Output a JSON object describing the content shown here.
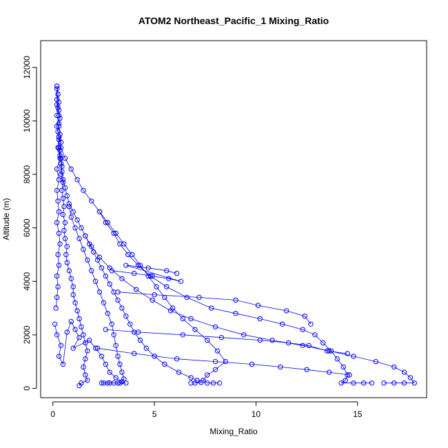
{
  "chart_data": {
    "type": "scatter",
    "title": "ATOM2 Northeast_Pacific_1 Mixing_Ratio",
    "xlabel": "Mixing_Ratio",
    "ylabel": "Altitude (m)",
    "xlim": [
      -0.6,
      18.4
    ],
    "ylim": [
      -350,
      13000
    ],
    "xticks": [
      0,
      5,
      10,
      15
    ],
    "yticks": [
      0,
      2000,
      4000,
      6000,
      8000,
      10000,
      12000
    ],
    "color": "#0000ff",
    "grid": false,
    "legend": "none",
    "series": [
      {
        "points": [
          [
            0.2,
            11300
          ],
          [
            0.25,
            11000
          ],
          [
            0.3,
            10700
          ],
          [
            0.3,
            10400
          ],
          [
            0.35,
            10100
          ],
          [
            0.3,
            9800
          ],
          [
            0.35,
            9500
          ],
          [
            0.4,
            9200
          ],
          [
            0.35,
            8900
          ],
          [
            0.4,
            8600
          ],
          [
            0.45,
            8300
          ],
          [
            0.4,
            8000
          ],
          [
            0.5,
            7700
          ],
          [
            0.45,
            7400
          ],
          [
            0.5,
            7100
          ],
          [
            0.55,
            6800
          ],
          [
            0.5,
            6500
          ],
          [
            0.6,
            6200
          ],
          [
            0.55,
            5900
          ],
          [
            0.6,
            5600
          ],
          [
            0.7,
            5300
          ],
          [
            0.65,
            5000
          ],
          [
            0.7,
            4700
          ],
          [
            0.8,
            4400
          ],
          [
            0.9,
            4100
          ],
          [
            1.0,
            3800
          ],
          [
            1.0,
            3500
          ],
          [
            1.1,
            3200
          ],
          [
            1.2,
            2900
          ],
          [
            1.3,
            2600
          ],
          [
            1.4,
            2300
          ],
          [
            1.5,
            2000
          ],
          [
            1.6,
            1700
          ],
          [
            1.7,
            1400
          ],
          [
            1.6,
            1100
          ],
          [
            1.5,
            800
          ],
          [
            1.6,
            500
          ],
          [
            1.7,
            300
          ],
          [
            1.4,
            200
          ],
          [
            1.3,
            100
          ]
        ]
      },
      {
        "points": [
          [
            0.2,
            11200
          ],
          [
            0.2,
            10800
          ],
          [
            0.25,
            10500
          ],
          [
            0.2,
            10200
          ],
          [
            0.3,
            9900
          ],
          [
            0.25,
            9600
          ],
          [
            0.3,
            9300
          ],
          [
            0.3,
            9000
          ],
          [
            0.35,
            8700
          ],
          [
            0.4,
            8400
          ],
          [
            0.45,
            8100
          ],
          [
            0.5,
            7800
          ],
          [
            0.6,
            7500
          ],
          [
            0.7,
            7200
          ],
          [
            0.8,
            6900
          ],
          [
            1.0,
            6600
          ],
          [
            1.2,
            6300
          ],
          [
            1.4,
            6000
          ],
          [
            1.6,
            5700
          ],
          [
            1.8,
            5400
          ],
          [
            2.0,
            5100
          ],
          [
            2.2,
            4800
          ],
          [
            2.4,
            4500
          ],
          [
            2.6,
            4200
          ],
          [
            2.8,
            3900
          ],
          [
            3.0,
            3600
          ],
          [
            3.2,
            3300
          ],
          [
            3.4,
            3000
          ],
          [
            3.6,
            2700
          ],
          [
            3.8,
            2400
          ],
          [
            4.0,
            2100
          ],
          [
            4.3,
            1800
          ],
          [
            4.6,
            1500
          ],
          [
            5.0,
            1200
          ],
          [
            5.5,
            900
          ],
          [
            6.2,
            600
          ],
          [
            6.8,
            400
          ],
          [
            7.1,
            300
          ],
          [
            7.3,
            220
          ],
          [
            7.0,
            200
          ],
          [
            6.8,
            200
          ]
        ]
      },
      {
        "points": [
          [
            0.3,
            9400
          ],
          [
            0.4,
            9000
          ],
          [
            0.6,
            8600
          ],
          [
            0.9,
            8200
          ],
          [
            1.2,
            7800
          ],
          [
            1.5,
            7400
          ],
          [
            1.9,
            7000
          ],
          [
            2.3,
            6600
          ],
          [
            2.7,
            6200
          ],
          [
            3.1,
            5800
          ],
          [
            3.5,
            5400
          ],
          [
            3.9,
            5000
          ],
          [
            4.3,
            4600
          ],
          [
            4.7,
            4200
          ],
          [
            5.1,
            3800
          ],
          [
            5.5,
            3400
          ],
          [
            5.9,
            3000
          ],
          [
            6.4,
            2600
          ],
          [
            7.0,
            2200
          ],
          [
            7.6,
            1800
          ],
          [
            8.1,
            1400
          ],
          [
            8.5,
            1000
          ],
          [
            8.0,
            700
          ],
          [
            7.6,
            500
          ],
          [
            7.4,
            300
          ],
          [
            7.6,
            200
          ],
          [
            7.9,
            200
          ],
          [
            8.2,
            200
          ]
        ]
      },
      {
        "points": [
          [
            2.3,
            6600
          ],
          [
            2.6,
            6200
          ],
          [
            3.0,
            5800
          ],
          [
            3.3,
            5400
          ],
          [
            3.7,
            5000
          ],
          [
            4.2,
            4600
          ],
          [
            4.8,
            4200
          ],
          [
            5.6,
            3800
          ],
          [
            6.6,
            3400
          ],
          [
            7.8,
            3000
          ],
          [
            9.0,
            2800
          ],
          [
            10.2,
            2600
          ],
          [
            11.3,
            2400
          ],
          [
            12.3,
            2200
          ],
          [
            12.9,
            2000
          ],
          [
            13.3,
            1700
          ],
          [
            13.7,
            1400
          ],
          [
            14.0,
            1100
          ],
          [
            14.3,
            800
          ],
          [
            14.5,
            500
          ],
          [
            14.4,
            300
          ],
          [
            14.2,
            200
          ],
          [
            14.8,
            200
          ],
          [
            15.3,
            200
          ],
          [
            15.7,
            200
          ]
        ]
      },
      {
        "points": [
          [
            1.6,
            5700
          ],
          [
            1.9,
            5300
          ],
          [
            2.3,
            4900
          ],
          [
            2.8,
            4500
          ],
          [
            3.4,
            4100
          ],
          [
            4.1,
            3700
          ],
          [
            4.9,
            3300
          ],
          [
            5.8,
            2900
          ],
          [
            6.8,
            2600
          ],
          [
            8.0,
            2300
          ],
          [
            9.4,
            2000
          ],
          [
            10.8,
            1800
          ],
          [
            12.3,
            1600
          ],
          [
            13.6,
            1400
          ],
          [
            14.8,
            1200
          ],
          [
            15.9,
            1000
          ],
          [
            16.8,
            800
          ],
          [
            17.3,
            600
          ],
          [
            17.6,
            400
          ],
          [
            17.8,
            200
          ],
          [
            17.3,
            200
          ],
          [
            16.8,
            200
          ],
          [
            16.3,
            200
          ]
        ]
      },
      {
        "points": [
          [
            0.8,
            6800
          ],
          [
            0.9,
            6400
          ],
          [
            1.1,
            6000
          ],
          [
            1.3,
            5600
          ],
          [
            1.5,
            5200
          ],
          [
            1.7,
            4800
          ],
          [
            1.9,
            4400
          ],
          [
            2.1,
            4000
          ],
          [
            2.3,
            3600
          ],
          [
            2.5,
            3200
          ],
          [
            2.7,
            2800
          ],
          [
            2.9,
            2400
          ],
          [
            3.0,
            2000
          ],
          [
            3.1,
            1600
          ],
          [
            3.2,
            1200
          ],
          [
            3.3,
            900
          ],
          [
            3.4,
            600
          ],
          [
            3.5,
            350
          ],
          [
            3.3,
            200
          ],
          [
            3.0,
            200
          ],
          [
            2.7,
            200
          ],
          [
            2.4,
            200
          ]
        ]
      },
      {
        "points": [
          [
            2.9,
            4400
          ],
          [
            4.0,
            4300
          ],
          [
            4.9,
            4200
          ],
          [
            5.7,
            4100
          ],
          [
            6.3,
            4000
          ],
          [
            3.6,
            4600
          ],
          [
            4.7,
            4500
          ],
          [
            5.6,
            4400
          ],
          [
            6.1,
            4300
          ]
        ]
      },
      {
        "points": [
          [
            3.2,
            3600
          ],
          [
            5.0,
            3500
          ],
          [
            7.2,
            3400
          ],
          [
            9.0,
            3300
          ],
          [
            10.1,
            3100
          ],
          [
            11.5,
            2900
          ],
          [
            12.4,
            2700
          ],
          [
            12.7,
            2400
          ]
        ]
      },
      {
        "points": [
          [
            2.6,
            2200
          ],
          [
            4.2,
            2100
          ],
          [
            6.4,
            2000
          ],
          [
            8.3,
            1900
          ],
          [
            10.2,
            1800
          ],
          [
            11.6,
            1700
          ],
          [
            12.6,
            1600
          ],
          [
            13.5,
            1400
          ],
          [
            14.5,
            1300
          ]
        ]
      },
      {
        "points": [
          [
            2.2,
            1500
          ],
          [
            4.0,
            1300
          ],
          [
            6.1,
            1100
          ],
          [
            8.0,
            1000
          ],
          [
            9.8,
            900
          ],
          [
            11.2,
            800
          ],
          [
            12.5,
            700
          ],
          [
            13.6,
            600
          ],
          [
            14.6,
            500
          ]
        ]
      },
      {
        "points": [
          [
            0.15,
            3000
          ],
          [
            0.2,
            3400
          ],
          [
            0.25,
            3800
          ],
          [
            0.2,
            4200
          ],
          [
            0.3,
            4600
          ],
          [
            0.25,
            5000
          ],
          [
            0.35,
            5400
          ],
          [
            0.3,
            5800
          ],
          [
            0.2,
            6200
          ],
          [
            0.3,
            6600
          ],
          [
            0.25,
            7000
          ],
          [
            0.2,
            7400
          ],
          [
            0.3,
            7800
          ],
          [
            0.2,
            8200
          ],
          [
            0.35,
            8600
          ],
          [
            0.25,
            9000
          ],
          [
            0.3,
            9400
          ],
          [
            0.2,
            9800
          ],
          [
            0.3,
            10200
          ],
          [
            0.2,
            10600
          ],
          [
            0.25,
            11000
          ],
          [
            0.2,
            11300
          ]
        ]
      },
      {
        "points": [
          [
            0.1,
            2400
          ],
          [
            0.2,
            2000
          ],
          [
            0.4,
            1600
          ],
          [
            0.3,
            1200
          ],
          [
            0.5,
            900
          ],
          [
            0.7,
            2100
          ],
          [
            0.9,
            2500
          ],
          [
            1.1,
            2200
          ],
          [
            1.3,
            1900
          ],
          [
            1.0,
            1500
          ],
          [
            1.8,
            1800
          ],
          [
            2.1,
            1500
          ],
          [
            2.4,
            1200
          ],
          [
            2.6,
            900
          ],
          [
            2.8,
            600
          ],
          [
            3.1,
            400
          ],
          [
            3.4,
            250
          ],
          [
            3.6,
            200
          ],
          [
            2.5,
            200
          ],
          [
            2.8,
            200
          ],
          [
            3.2,
            200
          ]
        ]
      }
    ]
  }
}
